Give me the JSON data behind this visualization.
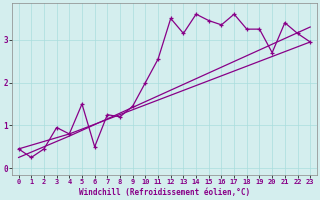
{
  "xlabel": "Windchill (Refroidissement éolien,°C)",
  "bg_color": "#d4eeee",
  "line_color": "#880088",
  "xlim": [
    -0.5,
    23.5
  ],
  "ylim": [
    -0.15,
    3.85
  ],
  "xticks": [
    0,
    1,
    2,
    3,
    4,
    5,
    6,
    7,
    8,
    9,
    10,
    11,
    12,
    13,
    14,
    15,
    16,
    17,
    18,
    19,
    20,
    21,
    22,
    23
  ],
  "yticks": [
    0,
    1,
    2,
    3
  ],
  "grid_color": "#aadddd",
  "zigzag_x": [
    0,
    1,
    2,
    3,
    4,
    5,
    6,
    7,
    8,
    9,
    10,
    11,
    12,
    13,
    14,
    15,
    16,
    17,
    18,
    19,
    20,
    21,
    22,
    23
  ],
  "zigzag_y": [
    0.45,
    0.25,
    0.45,
    0.95,
    0.8,
    1.5,
    0.5,
    1.25,
    1.2,
    1.45,
    2.0,
    2.55,
    3.5,
    3.15,
    3.6,
    3.45,
    3.35,
    3.6,
    3.25,
    3.25,
    2.7,
    3.4,
    3.15,
    2.95
  ],
  "line1_x": [
    0,
    4,
    23
  ],
  "line1_y": [
    0.45,
    0.8,
    2.95
  ],
  "line2_x": [
    0,
    4,
    23
  ],
  "line2_y": [
    0.25,
    0.75,
    3.3
  ],
  "spine_color": "#888888"
}
